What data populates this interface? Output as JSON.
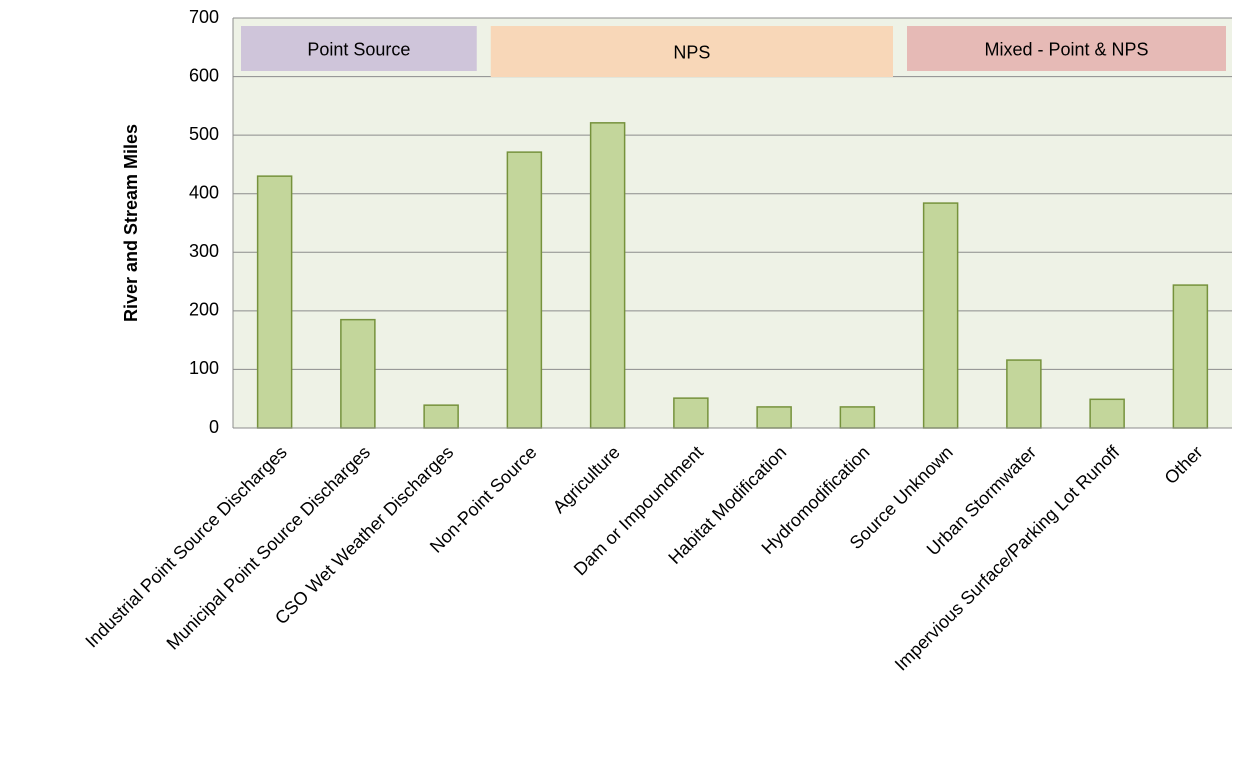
{
  "chart_data": {
    "type": "bar",
    "y_label": "River and Stream Miles",
    "categories": [
      "Industrial Point Source Discharges",
      "Municipal Point Source Discharges",
      "CSO Wet Weather Discharges",
      "Non-Point Source",
      "Agriculture",
      "Dam or Impoundment",
      "Habitat Modification",
      "Hydromodification",
      "Source Unknown",
      "Urban Stormwater",
      "Impervious Surface/Parking Lot Runoff",
      "Other"
    ],
    "values": [
      430,
      185,
      39,
      471,
      521,
      51,
      36,
      36,
      384,
      116,
      49,
      244
    ],
    "color": "#c3d69b",
    "edge_color": "#76923c",
    "plot_background": "#eef2e6",
    "ylim": [
      0,
      700
    ],
    "yticks": [
      0,
      100,
      200,
      300,
      400,
      500,
      600,
      700
    ],
    "grid": true,
    "groups": [
      {
        "name": "Point Source",
        "first": 0,
        "last": 2,
        "color": "#cfc5da"
      },
      {
        "name": "NPS",
        "first": 3,
        "last": 7,
        "color": "#f8d7b8"
      },
      {
        "name": "Mixed - Point & NPS",
        "first": 8,
        "last": 11,
        "color": "#e6bab6"
      }
    ]
  }
}
